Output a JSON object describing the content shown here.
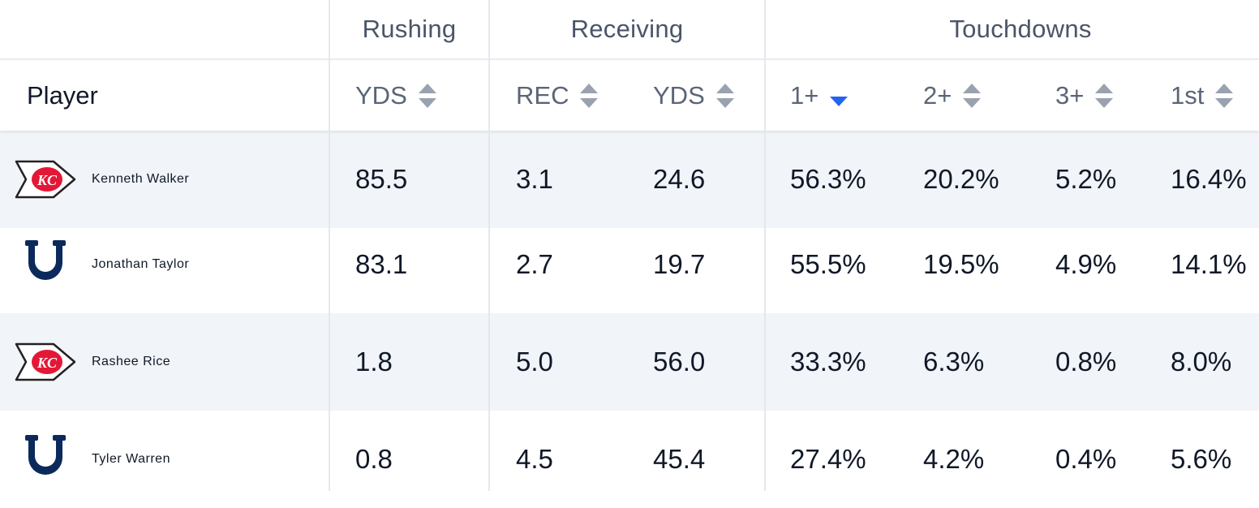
{
  "groups": {
    "rushing": "Rushing",
    "receiving": "Receiving",
    "touchdowns": "Touchdowns"
  },
  "columns": {
    "player": "Player",
    "rush_yds": "YDS",
    "rec": "REC",
    "rec_yds": "YDS",
    "td1": "1+",
    "td2": "2+",
    "td3": "3+",
    "td_first": "1st"
  },
  "sorted_by": "td1",
  "sort_direction": "descending",
  "colors": {
    "chiefs_red": "#e31837",
    "colts_blue": "#0b2a5b",
    "sort_active": "#2563eb",
    "row_shade": "#f1f4f8"
  },
  "rows": [
    {
      "team_icon": "chiefs-logo-icon",
      "name": "Kenneth Walker",
      "rush_yds": "85.5",
      "rec": "3.1",
      "rec_yds": "24.6",
      "td1": "56.3%",
      "td2": "20.2%",
      "td3": "5.2%",
      "td_first": "16.4%"
    },
    {
      "team_icon": "colts-horseshoe-icon",
      "name": "Jonathan Taylor",
      "rush_yds": "83.1",
      "rec": "2.7",
      "rec_yds": "19.7",
      "td1": "55.5%",
      "td2": "19.5%",
      "td3": "4.9%",
      "td_first": "14.1%"
    },
    {
      "team_icon": "chiefs-logo-icon",
      "name": "Rashee Rice",
      "rush_yds": "1.8",
      "rec": "5.0",
      "rec_yds": "56.0",
      "td1": "33.3%",
      "td2": "6.3%",
      "td3": "0.8%",
      "td_first": "8.0%"
    },
    {
      "team_icon": "colts-horseshoe-icon",
      "name": "Tyler Warren",
      "rush_yds": "0.8",
      "rec": "4.5",
      "rec_yds": "45.4",
      "td1": "27.4%",
      "td2": "4.2%",
      "td3": "0.4%",
      "td_first": "5.6%"
    }
  ]
}
